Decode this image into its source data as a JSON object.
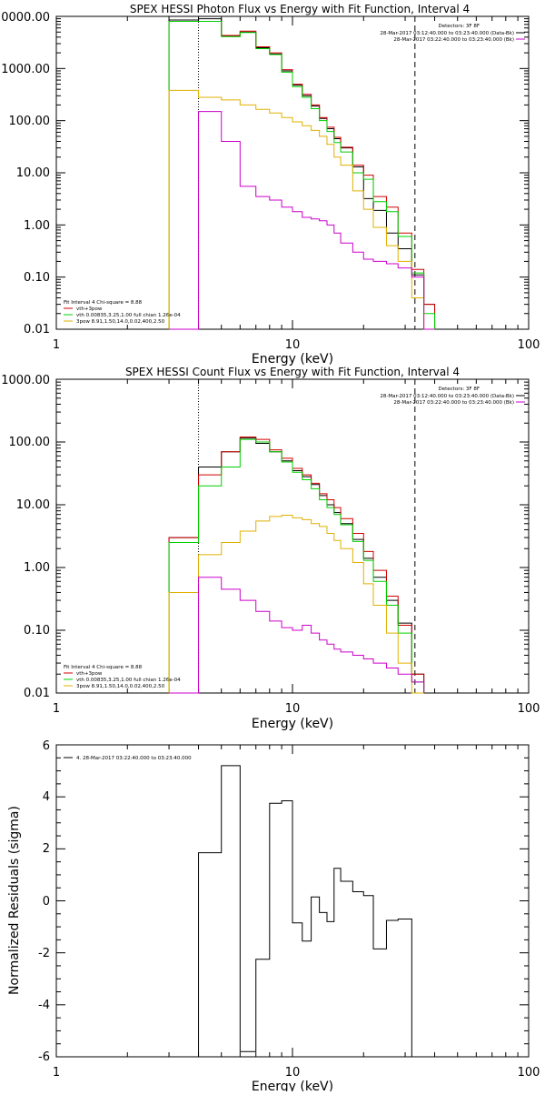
{
  "colors": {
    "data": "#000000",
    "total": "#d00000",
    "vth": "#00d000",
    "pow": "#e0b000",
    "bk": "#cc00cc"
  },
  "chart_data": [
    {
      "type": "line",
      "title": "SPEX HESSI Photon Flux vs Energy with Fit Function, Interval 4",
      "xlabel": "Energy (keV)",
      "ylabel": "",
      "xscale": "log",
      "yscale": "log",
      "xlim": [
        1,
        100
      ],
      "ylim": [
        0.01,
        10000
      ],
      "x_ticks": [
        "1",
        "10",
        "100"
      ],
      "y_ticks": [
        "0.01",
        "0.10",
        "1.00",
        "10.00",
        "100.00",
        "1000.00",
        "10000.00"
      ],
      "edges": [
        3.0,
        4.0,
        5.0,
        6.0,
        7.0,
        8.0,
        9.0,
        10.0,
        11.0,
        12.0,
        13.0,
        14.0,
        15.0,
        16.0,
        18.0,
        20.0,
        22.0,
        25.0,
        28.0,
        32.0,
        36.0,
        40.0
      ],
      "dotted_line_x": 4.0,
      "dashed_line_x": 33.0,
      "series": [
        {
          "key": "data",
          "values": [
            8500,
            9000,
            4200,
            5000,
            2500,
            1900,
            900,
            480,
            300,
            190,
            110,
            70,
            45,
            30,
            13,
            3.2,
            1.9,
            0.7,
            0.35,
            0.11,
            0.03,
            0.01
          ]
        },
        {
          "key": "total",
          "values": [
            8000,
            8000,
            4300,
            5200,
            2600,
            2000,
            950,
            500,
            320,
            200,
            115,
            75,
            48,
            31,
            14,
            9,
            3.5,
            2.2,
            0.7,
            0.14,
            0.03,
            0.011
          ]
        },
        {
          "key": "vth",
          "values": [
            8000,
            8000,
            4100,
            4900,
            2400,
            1850,
            850,
            450,
            280,
            170,
            100,
            62,
            38,
            25,
            10,
            7.5,
            2.8,
            1.8,
            0.6,
            0.12,
            0.02,
            0.01
          ]
        },
        {
          "key": "pow",
          "values": [
            380,
            280,
            250,
            200,
            165,
            140,
            115,
            95,
            80,
            65,
            50,
            35,
            20,
            14,
            4.5,
            2,
            0.9,
            0.4,
            0.2,
            0.04,
            0.01,
            0.01
          ]
        },
        {
          "key": "bk",
          "values": [
            0.01,
            150,
            40,
            5.5,
            3.5,
            3,
            2.2,
            1.8,
            1.4,
            1.3,
            1.2,
            1.0,
            0.7,
            0.45,
            0.3,
            0.22,
            0.2,
            0.18,
            0.15,
            0.1,
            0.01,
            0.01
          ]
        }
      ],
      "legend_left": [
        "Fit Interval 4   Chi-square = 8.88",
        "vth+3pow",
        "vth 0.00835,3.25,1.00  full chian 1.26e-04",
        "3pow 8.91,1.50,14.0,0.02,400,2.50"
      ],
      "legend_right": [
        "Detectors: 3F 8F",
        "28-Mar-2017 03:12:40.000 to 03:23:40.000 (Data-Bk)",
        "28-Mar-2017 03:22:40.000 to 03:23:40.000 (Bk)"
      ]
    },
    {
      "type": "line",
      "title": "SPEX HESSI Count Flux vs Energy with Fit Function, Interval 4",
      "xlabel": "Energy (keV)",
      "ylabel": "",
      "xscale": "log",
      "yscale": "log",
      "xlim": [
        1,
        100
      ],
      "ylim": [
        0.01,
        1000
      ],
      "x_ticks": [
        "1",
        "10",
        "100"
      ],
      "y_ticks": [
        "0.01",
        "0.10",
        "1.00",
        "10.00",
        "100.00",
        "1000.00"
      ],
      "edges": [
        3.0,
        4.0,
        5.0,
        6.0,
        7.0,
        8.0,
        9.0,
        10.0,
        11.0,
        12.0,
        13.0,
        14.0,
        15.0,
        16.0,
        18.0,
        20.0,
        22.0,
        25.0,
        28.0,
        32.0,
        36.0
      ],
      "dotted_line_x": 4.0,
      "dashed_line_x": 33.0,
      "series": [
        {
          "key": "data",
          "values": [
            3.0,
            40,
            70,
            115,
            95,
            70,
            50,
            35,
            28,
            21,
            14,
            10,
            7.5,
            5.0,
            2.8,
            1.4,
            0.7,
            0.3,
            0.13,
            0.02
          ]
        },
        {
          "key": "total",
          "values": [
            3.0,
            30,
            70,
            120,
            110,
            75,
            55,
            38,
            30,
            22,
            15,
            12,
            9,
            6,
            3.5,
            1.8,
            0.9,
            0.35,
            0.12,
            0.02
          ]
        },
        {
          "key": "vth",
          "values": [
            2.5,
            20,
            40,
            110,
            100,
            70,
            48,
            33,
            25,
            18,
            12,
            9,
            7,
            4.8,
            2.6,
            1.3,
            0.6,
            0.25,
            0.09,
            0.015
          ]
        },
        {
          "key": "pow",
          "values": [
            0.4,
            1.6,
            2.5,
            3.8,
            5.5,
            6.5,
            6.8,
            6.2,
            5.8,
            5,
            4.5,
            3.5,
            2.7,
            2,
            1.2,
            0.55,
            0.25,
            0.09,
            0.03,
            0.01
          ]
        },
        {
          "key": "bk",
          "values": [
            0.01,
            0.7,
            0.45,
            0.3,
            0.2,
            0.14,
            0.11,
            0.1,
            0.12,
            0.09,
            0.07,
            0.06,
            0.05,
            0.045,
            0.04,
            0.035,
            0.03,
            0.025,
            0.02,
            0.015
          ]
        }
      ],
      "legend_left": [
        "Fit Interval 4   Chi-square = 8.88",
        "vth+3pow",
        "vth 0.00835,3.25,1.00  full chian 1.26e-04",
        "3pow 8.91,1.50,14.0,0.02,400,2.50"
      ],
      "legend_right": [
        "Detectors: 3F 8F",
        "28-Mar-2017 03:12:40.000 to 03:23:40.000 (Data-Bk)",
        "28-Mar-2017 03:22:40.000 to 03:23:40.000 (Bk)"
      ]
    },
    {
      "type": "line",
      "title": "",
      "xlabel": "Energy (keV)",
      "ylabel": "Normalized Residuals (sigma)",
      "xscale": "log",
      "yscale": "linear",
      "xlim": [
        1,
        100
      ],
      "ylim": [
        -6,
        6
      ],
      "x_ticks": [
        "1",
        "10",
        "100"
      ],
      "y_ticks": [
        "-6",
        "-4",
        "-2",
        "0",
        "2",
        "4",
        "6"
      ],
      "edges": [
        4.0,
        5.0,
        6.0,
        7.0,
        8.0,
        9.0,
        10.0,
        11.0,
        12.0,
        13.0,
        14.0,
        15.0,
        16.0,
        18.0,
        20.0,
        22.0,
        25.0,
        28.0,
        32.0
      ],
      "series": [
        {
          "key": "data",
          "values": [
            1.85,
            5.2,
            -5.8,
            -2.25,
            3.75,
            3.85,
            -0.85,
            -1.55,
            0.15,
            -0.45,
            -0.8,
            1.25,
            0.75,
            0.35,
            0.2,
            -1.85,
            -0.75,
            -0.7
          ]
        }
      ],
      "legend_left": [
        "4. 28-Mar-2017 03:22:40.000 to 03:23:40.000"
      ]
    }
  ]
}
